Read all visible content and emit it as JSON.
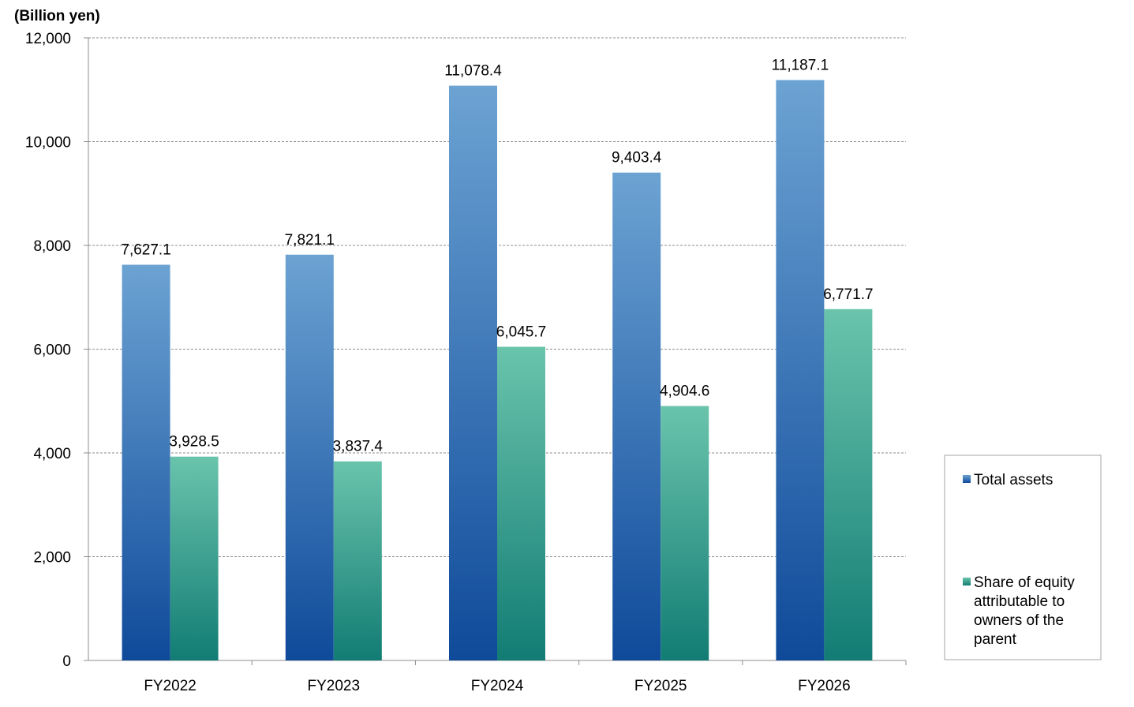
{
  "chart_data": {
    "type": "bar",
    "unit_label": "(Billion yen)",
    "categories": [
      "FY2022",
      "FY2023",
      "FY2024",
      "FY2025",
      "FY2026"
    ],
    "series": [
      {
        "name": "Total assets",
        "values": [
          7627.1,
          7821.1,
          11078.4,
          9403.4,
          11187.1
        ],
        "labels": [
          "7,627.1",
          "7,821.1",
          "11,078.4",
          "9,403.4",
          "11,187.1"
        ],
        "color_top": "#6ca3d3",
        "color_bottom": "#0f4a9a"
      },
      {
        "name": "Share of equity attributable to owners of the parent",
        "legend_lines": [
          "Share of equity",
          "attributable to",
          "owners of the",
          "parent"
        ],
        "values": [
          3928.5,
          3837.4,
          6045.7,
          4904.6,
          6771.7
        ],
        "labels": [
          "3,928.5",
          "3,837.4",
          "6,045.7",
          "4,904.6",
          "6,771.7"
        ],
        "color_top": "#6ac4ac",
        "color_bottom": "#127c74"
      }
    ],
    "ylim": [
      0,
      12000
    ],
    "yticks": [
      0,
      2000,
      4000,
      6000,
      8000,
      10000,
      12000
    ],
    "ytick_labels": [
      "0",
      "2,000",
      "4,000",
      "6,000",
      "8,000",
      "10,000",
      "12,000"
    ],
    "grid": true,
    "legend_position": "right"
  }
}
